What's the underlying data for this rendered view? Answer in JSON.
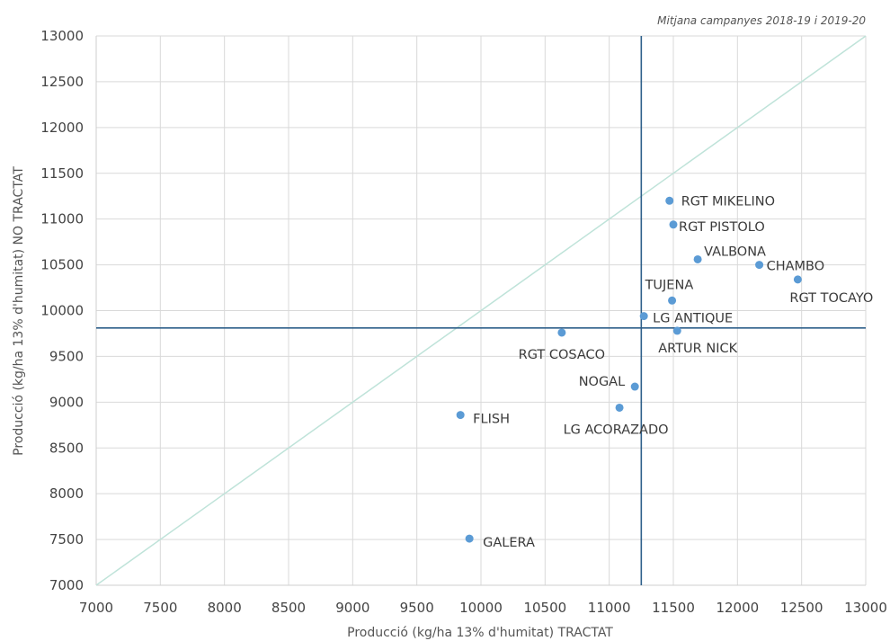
{
  "chart_data": {
    "type": "scatter",
    "title": "",
    "annotation": "Mitjana campanyes 2018-19 i 2019-20",
    "xlabel": "Producció (kg/ha 13% d'humitat) TRACTAT",
    "ylabel": "Producció (kg/ha 13% d'humitat) NO TRACTAT",
    "xlim": [
      7000,
      13000
    ],
    "ylim": [
      7000,
      13000
    ],
    "xticks": [
      7000,
      7500,
      8000,
      8500,
      9000,
      9500,
      10000,
      10500,
      11000,
      11500,
      12000,
      12500,
      13000
    ],
    "yticks": [
      7000,
      7500,
      8000,
      8500,
      9000,
      9500,
      10000,
      10500,
      11000,
      11500,
      12000,
      12500,
      13000
    ],
    "grid": true,
    "reference_lines": {
      "diagonal": "y = x",
      "vertical_mean_x": 11250,
      "horizontal_mean_y": 9810
    },
    "colors": {
      "points": "#5b9bd5",
      "mean_lines": "#2e5f8a",
      "diagonal": "#bfe3d9",
      "grid": "#d9d9d9"
    },
    "points": [
      {
        "label": "RGT MIKELINO",
        "x": 11470,
        "y": 11200
      },
      {
        "label": "RGT PISTOLO",
        "x": 11500,
        "y": 10940
      },
      {
        "label": "VALBONA",
        "x": 11690,
        "y": 10560
      },
      {
        "label": "CHAMBO",
        "x": 12170,
        "y": 10500
      },
      {
        "label": "RGT TOCAYO",
        "x": 12470,
        "y": 10340
      },
      {
        "label": "TUJENA",
        "x": 11490,
        "y": 10110
      },
      {
        "label": "LG ANTIQUE",
        "x": 11270,
        "y": 9940
      },
      {
        "label": "ARTUR NICK",
        "x": 11530,
        "y": 9780
      },
      {
        "label": "RGT COSACO",
        "x": 10630,
        "y": 9760
      },
      {
        "label": "NOGAL",
        "x": 11200,
        "y": 9170
      },
      {
        "label": "LG ACORAZADO",
        "x": 11080,
        "y": 8940
      },
      {
        "label": "FLISH",
        "x": 9840,
        "y": 8860
      },
      {
        "label": "GALERA",
        "x": 9910,
        "y": 7510
      }
    ]
  }
}
